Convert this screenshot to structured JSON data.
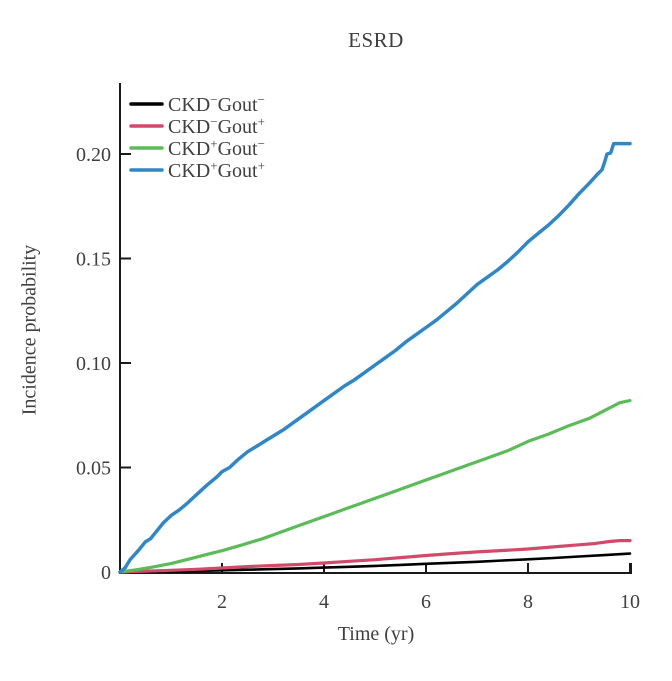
{
  "chart_data": {
    "type": "line",
    "title": "ESRD",
    "xlabel": "Time (yr)",
    "ylabel": "Incidence probability",
    "xlim": [
      0,
      10
    ],
    "ylim": [
      0,
      0.234
    ],
    "grid": false,
    "legend_position": "top-left",
    "x_ticks": [
      {
        "v": 2,
        "label": "2"
      },
      {
        "v": 4,
        "label": "4"
      },
      {
        "v": 6,
        "label": "6"
      },
      {
        "v": 8,
        "label": "8"
      },
      {
        "v": 10,
        "label": "10"
      }
    ],
    "y_ticks": [
      {
        "v": 0,
        "label": "0"
      },
      {
        "v": 0.05,
        "label": "0.05"
      },
      {
        "v": 0.1,
        "label": "0.10"
      },
      {
        "v": 0.15,
        "label": "0.15"
      },
      {
        "v": 0.2,
        "label": "0.20"
      }
    ],
    "axis_color": "#1a1a1a",
    "text_color": "#3f3f3f",
    "series": [
      {
        "name": "CKD-Gout-",
        "label_parts": [
          {
            "text": "CKD",
            "sup": "−"
          },
          {
            "text": "Gout",
            "sup": "−"
          }
        ],
        "color": "#000000",
        "line_width": 2.6,
        "points": [
          [
            0,
            0
          ],
          [
            0.5,
            0.0001
          ],
          [
            1,
            0.0003
          ],
          [
            1.5,
            0.0005
          ],
          [
            2,
            0.0008
          ],
          [
            2.5,
            0.0011
          ],
          [
            3,
            0.0014
          ],
          [
            3.5,
            0.0017
          ],
          [
            4,
            0.0021
          ],
          [
            4.5,
            0.0025
          ],
          [
            5,
            0.0029
          ],
          [
            5.5,
            0.0034
          ],
          [
            6,
            0.0039
          ],
          [
            6.5,
            0.0044
          ],
          [
            7,
            0.0049
          ],
          [
            7.5,
            0.0055
          ],
          [
            8,
            0.0061
          ],
          [
            8.5,
            0.0067
          ],
          [
            9,
            0.0074
          ],
          [
            9.5,
            0.0081
          ],
          [
            10,
            0.0088
          ]
        ]
      },
      {
        "name": "CKD-Gout+",
        "label_parts": [
          {
            "text": "CKD",
            "sup": "−"
          },
          {
            "text": "Gout",
            "sup": "+"
          }
        ],
        "color": "#d14a6b",
        "line_width": 3.2,
        "points": [
          [
            0,
            0
          ],
          [
            0.5,
            0.0004
          ],
          [
            1,
            0.0008
          ],
          [
            1.5,
            0.0013
          ],
          [
            2,
            0.0019
          ],
          [
            2.5,
            0.0026
          ],
          [
            3,
            0.0031
          ],
          [
            3.5,
            0.0036
          ],
          [
            4,
            0.0043
          ],
          [
            4.5,
            0.0051
          ],
          [
            5,
            0.0059
          ],
          [
            5.5,
            0.0069
          ],
          [
            6,
            0.0079
          ],
          [
            6.5,
            0.0088
          ],
          [
            7,
            0.0096
          ],
          [
            7.5,
            0.0103
          ],
          [
            8,
            0.011
          ],
          [
            8.5,
            0.012
          ],
          [
            9,
            0.013
          ],
          [
            9.3,
            0.0136
          ],
          [
            9.6,
            0.0146
          ],
          [
            9.8,
            0.015
          ],
          [
            10,
            0.015
          ]
        ]
      },
      {
        "name": "CKD+Gout-",
        "label_parts": [
          {
            "text": "CKD",
            "sup": "+"
          },
          {
            "text": "Gout",
            "sup": "−"
          }
        ],
        "color": "#5abb58",
        "line_width": 3.2,
        "points": [
          [
            0,
            0
          ],
          [
            0.3,
            0.001
          ],
          [
            0.6,
            0.0022
          ],
          [
            1,
            0.004
          ],
          [
            1.4,
            0.0065
          ],
          [
            1.8,
            0.009
          ],
          [
            2,
            0.0102
          ],
          [
            2.4,
            0.013
          ],
          [
            2.8,
            0.016
          ],
          [
            3.2,
            0.0195
          ],
          [
            3.6,
            0.023
          ],
          [
            4,
            0.0265
          ],
          [
            4.4,
            0.03
          ],
          [
            4.8,
            0.0335
          ],
          [
            5.2,
            0.037
          ],
          [
            5.6,
            0.0405
          ],
          [
            6,
            0.044
          ],
          [
            6.4,
            0.0475
          ],
          [
            6.8,
            0.051
          ],
          [
            7.2,
            0.0545
          ],
          [
            7.6,
            0.058
          ],
          [
            8,
            0.0625
          ],
          [
            8.4,
            0.066
          ],
          [
            8.8,
            0.07
          ],
          [
            9.2,
            0.0735
          ],
          [
            9.6,
            0.0785
          ],
          [
            9.8,
            0.081
          ],
          [
            10,
            0.082
          ]
        ]
      },
      {
        "name": "CKD+Gout+",
        "label_parts": [
          {
            "text": "CKD",
            "sup": "+"
          },
          {
            "text": "Gout",
            "sup": "+"
          }
        ],
        "color": "#2f87c9",
        "line_width": 3.5,
        "points": [
          [
            0,
            0
          ],
          [
            0.1,
            0.002
          ],
          [
            0.2,
            0.006
          ],
          [
            0.35,
            0.01
          ],
          [
            0.5,
            0.0145
          ],
          [
            0.6,
            0.016
          ],
          [
            0.7,
            0.019
          ],
          [
            0.85,
            0.0235
          ],
          [
            1,
            0.027
          ],
          [
            1.15,
            0.0295
          ],
          [
            1.3,
            0.0325
          ],
          [
            1.5,
            0.037
          ],
          [
            1.7,
            0.0415
          ],
          [
            1.9,
            0.0455
          ],
          [
            2,
            0.048
          ],
          [
            2.15,
            0.05
          ],
          [
            2.3,
            0.0535
          ],
          [
            2.5,
            0.0575
          ],
          [
            2.7,
            0.0605
          ],
          [
            2.9,
            0.0635
          ],
          [
            3,
            0.065
          ],
          [
            3.2,
            0.068
          ],
          [
            3.4,
            0.0715
          ],
          [
            3.6,
            0.075
          ],
          [
            3.8,
            0.0785
          ],
          [
            4,
            0.082
          ],
          [
            4.2,
            0.0855
          ],
          [
            4.4,
            0.089
          ],
          [
            4.6,
            0.092
          ],
          [
            4.8,
            0.0955
          ],
          [
            5,
            0.099
          ],
          [
            5.2,
            0.1025
          ],
          [
            5.4,
            0.106
          ],
          [
            5.6,
            0.11
          ],
          [
            5.8,
            0.1135
          ],
          [
            6,
            0.117
          ],
          [
            6.2,
            0.1205
          ],
          [
            6.4,
            0.1245
          ],
          [
            6.6,
            0.1285
          ],
          [
            6.8,
            0.133
          ],
          [
            7,
            0.1375
          ],
          [
            7.2,
            0.141
          ],
          [
            7.4,
            0.1445
          ],
          [
            7.6,
            0.1485
          ],
          [
            7.8,
            0.153
          ],
          [
            8,
            0.158
          ],
          [
            8.2,
            0.162
          ],
          [
            8.4,
            0.166
          ],
          [
            8.6,
            0.1705
          ],
          [
            8.8,
            0.1755
          ],
          [
            9,
            0.181
          ],
          [
            9.2,
            0.186
          ],
          [
            9.35,
            0.19
          ],
          [
            9.45,
            0.1925
          ],
          [
            9.5,
            0.196
          ],
          [
            9.55,
            0.2
          ],
          [
            9.62,
            0.2005
          ],
          [
            9.68,
            0.205
          ],
          [
            10,
            0.205
          ]
        ]
      }
    ]
  }
}
